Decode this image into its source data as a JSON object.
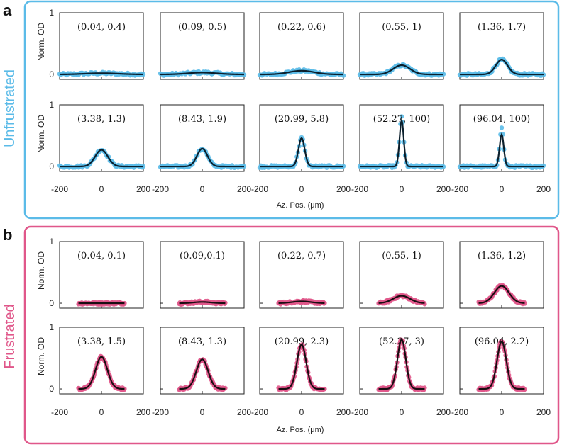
{
  "panels": [
    {
      "letter": "a",
      "side_label": "Unfrustrated",
      "color": "#5bbbe8",
      "ylabel": "Norm. OD",
      "xlabel": "Az. Pos. (μm)",
      "xticks": [
        "-200",
        "0",
        "200"
      ],
      "yticks": [
        "1",
        "0"
      ]
    },
    {
      "letter": "b",
      "side_label": "Frustrated",
      "color": "#e0578a",
      "ylabel": "Norm. OD",
      "xlabel": "Az. Pos. (μm)",
      "xticks": [
        "-200",
        "0",
        "200"
      ],
      "yticks": [
        "1",
        "0"
      ]
    }
  ],
  "chart_data": [
    {
      "type": "line",
      "title": "a — Unfrustrated",
      "xlabel": "Az. Pos. (μm)",
      "ylabel": "Norm. OD",
      "xlim": [
        -200,
        200
      ],
      "ylim": [
        0,
        1
      ],
      "data_color": "#5bbbe8",
      "fit_color": "#0b1f2c",
      "x_extent": [
        -200,
        200
      ],
      "subplots": [
        {
          "label": "(0.04, 0.4)",
          "amplitude": 0.02,
          "width": 80
        },
        {
          "label": "(0.09, 0.5)",
          "amplitude": 0.03,
          "width": 70
        },
        {
          "label": "(0.22, 0.6)",
          "amplitude": 0.06,
          "width": 60
        },
        {
          "label": "(0.55, 1)",
          "amplitude": 0.15,
          "width": 40
        },
        {
          "label": "(1.36, 1.7)",
          "amplitude": 0.24,
          "width": 28
        },
        {
          "label": "(3.38, 1.3)",
          "amplitude": 0.27,
          "width": 30
        },
        {
          "label": "(8.43, 1.9)",
          "amplitude": 0.29,
          "width": 25
        },
        {
          "label": "(20.99, 5.8)",
          "amplitude": 0.46,
          "width": 15
        },
        {
          "label": "(52.27, 100)",
          "amplitude": 0.75,
          "width": 10,
          "data_peak": 0.82
        },
        {
          "label": "(96.04, 100)",
          "amplitude": 0.52,
          "width": 10,
          "data_peak": 0.62
        }
      ]
    },
    {
      "type": "line",
      "title": "b — Frustrated",
      "xlabel": "Az. Pos. (μm)",
      "ylabel": "Norm. OD",
      "xlim": [
        -200,
        200
      ],
      "ylim": [
        0,
        1
      ],
      "data_color": "#e0578a",
      "fit_color": "#1a0d12",
      "x_extent": [
        -110,
        110
      ],
      "subplots": [
        {
          "label": "(0.04, 0.1)",
          "amplitude": 0.0,
          "width": 50
        },
        {
          "label": "(0.09,0.1)",
          "amplitude": 0.02,
          "width": 40
        },
        {
          "label": "(0.22, 0.7)",
          "amplitude": 0.03,
          "width": 45
        },
        {
          "label": "(0.55, 1)",
          "amplitude": 0.12,
          "width": 40
        },
        {
          "label": "(1.36, 1.2)",
          "amplitude": 0.28,
          "width": 35
        },
        {
          "label": "(3.38, 1.5)",
          "amplitude": 0.52,
          "width": 28
        },
        {
          "label": "(8.43, 1.3)",
          "amplitude": 0.48,
          "width": 28
        },
        {
          "label": "(20.99, 2.3)",
          "amplitude": 0.72,
          "width": 22
        },
        {
          "label": "(52.27, 3)",
          "amplitude": 0.8,
          "width": 20
        },
        {
          "label": "(96.04, 2.2)",
          "amplitude": 0.77,
          "width": 22
        }
      ]
    }
  ]
}
